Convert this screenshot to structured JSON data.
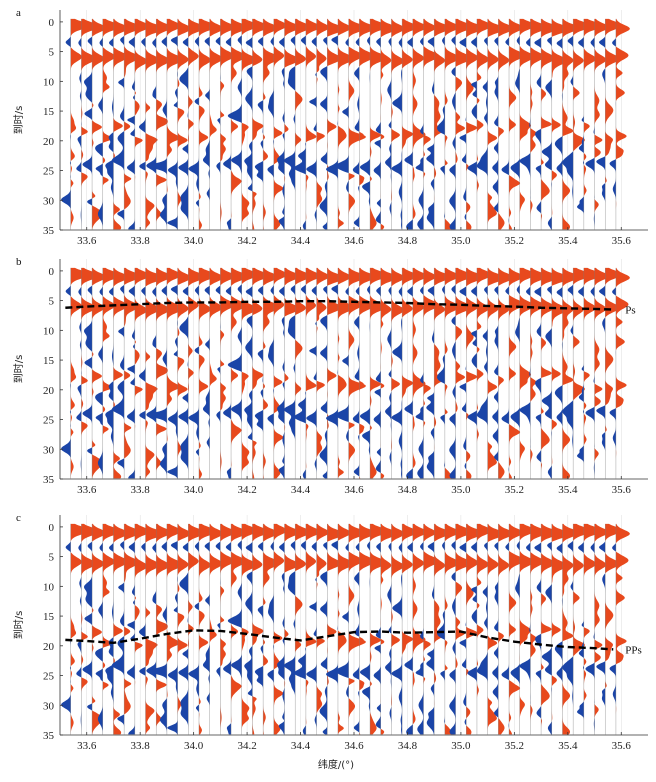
{
  "chart_data": [
    {
      "panel": "a",
      "type": "seismic-wiggle",
      "xlabel": "",
      "ylabel": "到时/s",
      "xlim": [
        33.5,
        35.7
      ],
      "ylim": [
        35,
        -2
      ],
      "x_ticks": [
        33.6,
        33.8,
        34.0,
        34.2,
        34.4,
        34.6,
        34.8,
        35.0,
        35.2,
        35.4,
        35.6
      ],
      "y_ticks": [
        0,
        5,
        10,
        15,
        20,
        25,
        30,
        35
      ],
      "phase": null
    },
    {
      "panel": "b",
      "type": "seismic-wiggle",
      "xlabel": "",
      "ylabel": "到时/s",
      "xlim": [
        33.5,
        35.7
      ],
      "ylim": [
        35,
        -2
      ],
      "x_ticks": [
        33.6,
        33.8,
        34.0,
        34.2,
        34.4,
        34.6,
        34.8,
        35.0,
        35.2,
        35.4,
        35.6
      ],
      "y_ticks": [
        0,
        5,
        10,
        15,
        20,
        25,
        30,
        35
      ],
      "phase": {
        "label": "Ps",
        "x": [
          33.52,
          33.6,
          33.7,
          33.8,
          33.9,
          34.0,
          34.1,
          34.2,
          34.3,
          34.4,
          34.5,
          34.6,
          34.7,
          34.8,
          34.9,
          35.0,
          35.1,
          35.2,
          35.3,
          35.4,
          35.5,
          35.57
        ],
        "y": [
          6.2,
          6.0,
          5.8,
          5.6,
          5.4,
          5.3,
          5.3,
          5.2,
          5.2,
          5.1,
          5.1,
          5.2,
          5.3,
          5.4,
          5.6,
          5.7,
          5.9,
          6.0,
          6.2,
          6.3,
          6.4,
          6.5
        ]
      }
    },
    {
      "panel": "c",
      "type": "seismic-wiggle",
      "xlabel": "纬度/(°)",
      "ylabel": "到时/s",
      "xlim": [
        33.5,
        35.7
      ],
      "ylim": [
        35,
        -2
      ],
      "x_ticks": [
        33.6,
        33.8,
        34.0,
        34.2,
        34.4,
        34.6,
        34.8,
        35.0,
        35.2,
        35.4,
        35.6
      ],
      "y_ticks": [
        0,
        5,
        10,
        15,
        20,
        25,
        30,
        35
      ],
      "phase": {
        "label": "PPs",
        "x": [
          33.52,
          33.6,
          33.7,
          33.8,
          33.9,
          34.0,
          34.1,
          34.2,
          34.3,
          34.4,
          34.5,
          34.6,
          34.7,
          34.8,
          34.9,
          35.0,
          35.1,
          35.2,
          35.3,
          35.4,
          35.5,
          35.57
        ],
        "y": [
          19.0,
          19.2,
          19.5,
          18.8,
          18.0,
          17.4,
          17.5,
          18.0,
          18.6,
          19.1,
          18.4,
          17.7,
          17.6,
          17.8,
          17.7,
          17.6,
          18.6,
          19.3,
          19.8,
          20.2,
          20.4,
          20.6
        ]
      }
    }
  ],
  "traces": {
    "x": [
      33.54,
      33.58,
      33.62,
      33.66,
      33.7,
      33.74,
      33.78,
      33.82,
      33.86,
      33.9,
      33.94,
      33.98,
      34.02,
      34.06,
      34.1,
      34.14,
      34.18,
      34.22,
      34.26,
      34.3,
      34.34,
      34.38,
      34.42,
      34.46,
      34.5,
      34.54,
      34.58,
      34.62,
      34.66,
      34.7,
      34.74,
      34.78,
      34.82,
      34.86,
      34.9,
      34.94,
      34.98,
      35.02,
      35.06,
      35.1,
      35.14,
      35.18,
      35.22,
      35.26,
      35.3,
      35.34,
      35.38,
      35.42,
      35.46,
      35.5,
      35.54,
      35.58
    ],
    "positive_color": "#e8491d",
    "negative_color": "#1b45a8"
  }
}
